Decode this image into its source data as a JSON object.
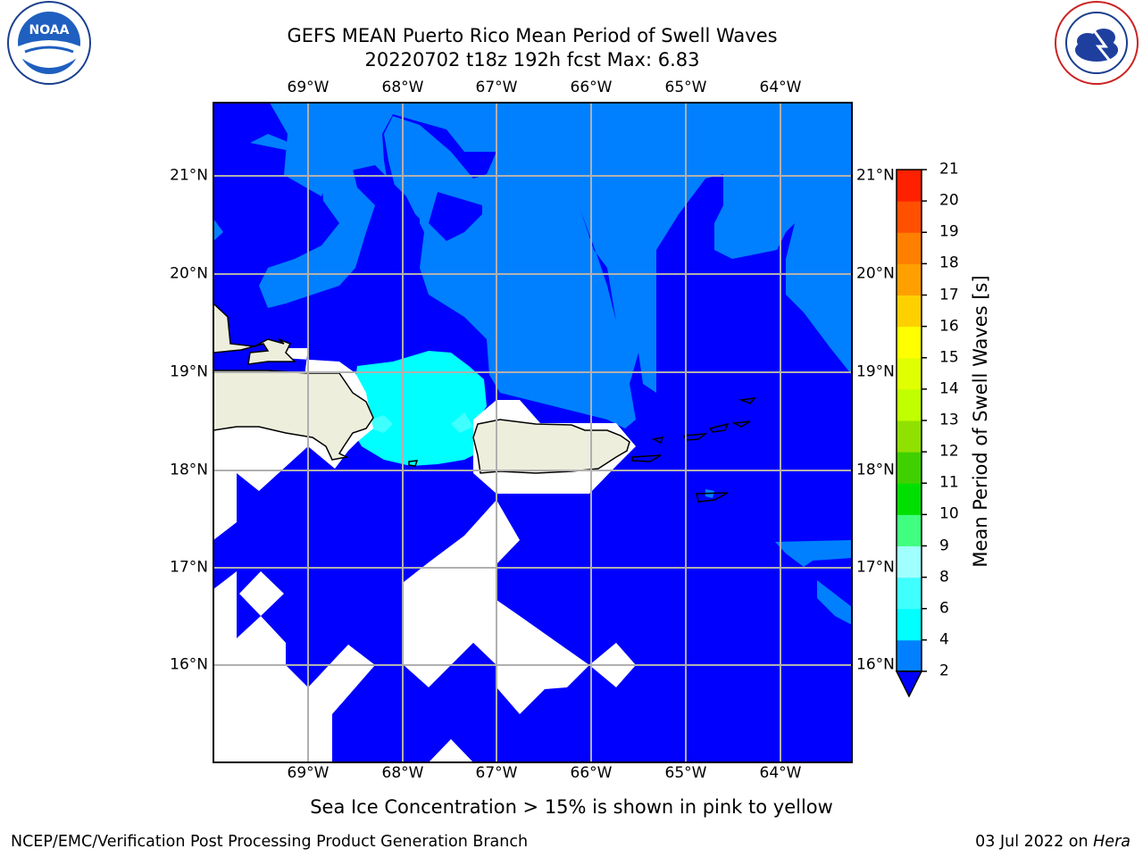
{
  "title": {
    "line1": "GEFS MEAN Puerto Rico Mean Period of Swell Waves",
    "line2": "20220702 t18z 192h fcst   Max: 6.83"
  },
  "map": {
    "lon_labels": [
      "69°W",
      "68°W",
      "67°W",
      "66°W",
      "65°W",
      "64°W"
    ],
    "lat_labels": [
      "21°N",
      "20°N",
      "19°N",
      "18°N",
      "17°N",
      "16°N"
    ],
    "colors": {
      "band_2_4": "#0080ff",
      "below_2": "#0000ff",
      "band_4_6": "#00ffff",
      "band_6_8": "#40ffff",
      "land": "#eeeedd",
      "grid": "#b0b0b0"
    }
  },
  "colorbar": {
    "label": "Mean Period of Swell Waves [s]",
    "ticks": [
      "2",
      "4",
      "6",
      "8",
      "9",
      "10",
      "11",
      "12",
      "13",
      "14",
      "15",
      "16",
      "17",
      "18",
      "19",
      "20",
      "21"
    ],
    "colors": [
      "#0080ff",
      "#00ffff",
      "#40ffff",
      "#a0ffff",
      "#40ff80",
      "#00e000",
      "#40d000",
      "#90e000",
      "#c0ff00",
      "#e0ff00",
      "#ffff00",
      "#ffd000",
      "#ffa000",
      "#ff8000",
      "#ff5000",
      "#ff2000",
      "#ff0000"
    ],
    "extend_color": "#0000ff"
  },
  "footnote": "Sea Ice Concentration > 15% is shown in pink to yellow",
  "credit": "NCEP/EMC/Verification Post Processing Product Generation Branch",
  "date": "03 Jul 2022 on",
  "host": "Hera",
  "logos": {
    "left": "NOAA",
    "right": "NATIONAL WEATHER SERVICE"
  }
}
